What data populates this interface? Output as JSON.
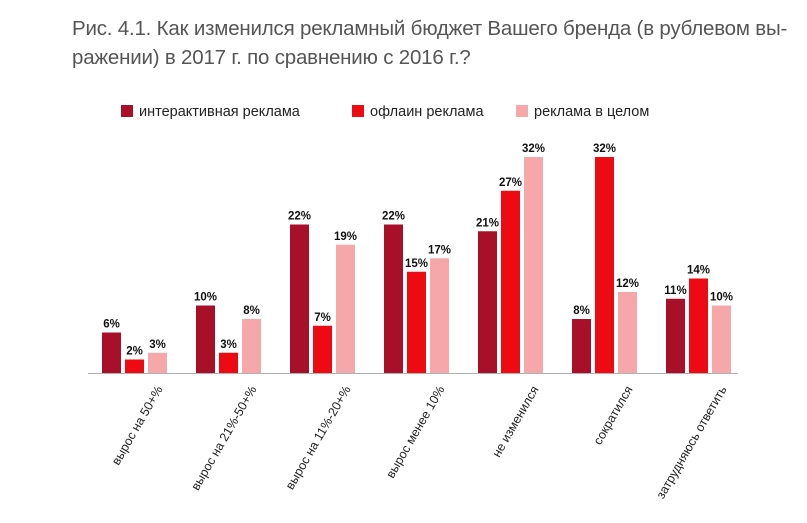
{
  "title": {
    "line1": "Рис. 4.1. Как изменился рекламный бюджет Вашего бренда (в рублевом вы-",
    "line2": "ражении) в 2017 г. по сравнению с 2016 г.?"
  },
  "colors": {
    "interactive": "#a8102a",
    "offline": "#ee0a12",
    "overall": "#f5a7a9",
    "axis": "#b0b0b0"
  },
  "chart_data": {
    "type": "bar",
    "title": "Рис. 4.1. Как изменился рекламный бюджет Вашего бренда (в рублевом выражении) в 2017 г. по сравнению с 2016 г.?",
    "legend_position": "top",
    "grid": false,
    "ylim": [
      0,
      32
    ],
    "categories": [
      "вырос на 50+%",
      "вырос на 21%-50+%",
      "вырос на 11%-20+%",
      "вырос менее 10%",
      "не изменился",
      "сократился",
      "затрудняюсь ответить"
    ],
    "series": [
      {
        "name": "интерактивная реклама",
        "color": "#a8102a",
        "values": [
          6,
          10,
          22,
          22,
          21,
          8,
          11
        ]
      },
      {
        "name": "офлаин реклама",
        "color": "#ee0a12",
        "values": [
          2,
          3,
          7,
          15,
          27,
          32,
          14
        ]
      },
      {
        "name": "реклама в целом",
        "color": "#f5a7a9",
        "values": [
          3,
          8,
          19,
          17,
          32,
          12,
          10
        ]
      }
    ],
    "value_suffix": "%"
  }
}
